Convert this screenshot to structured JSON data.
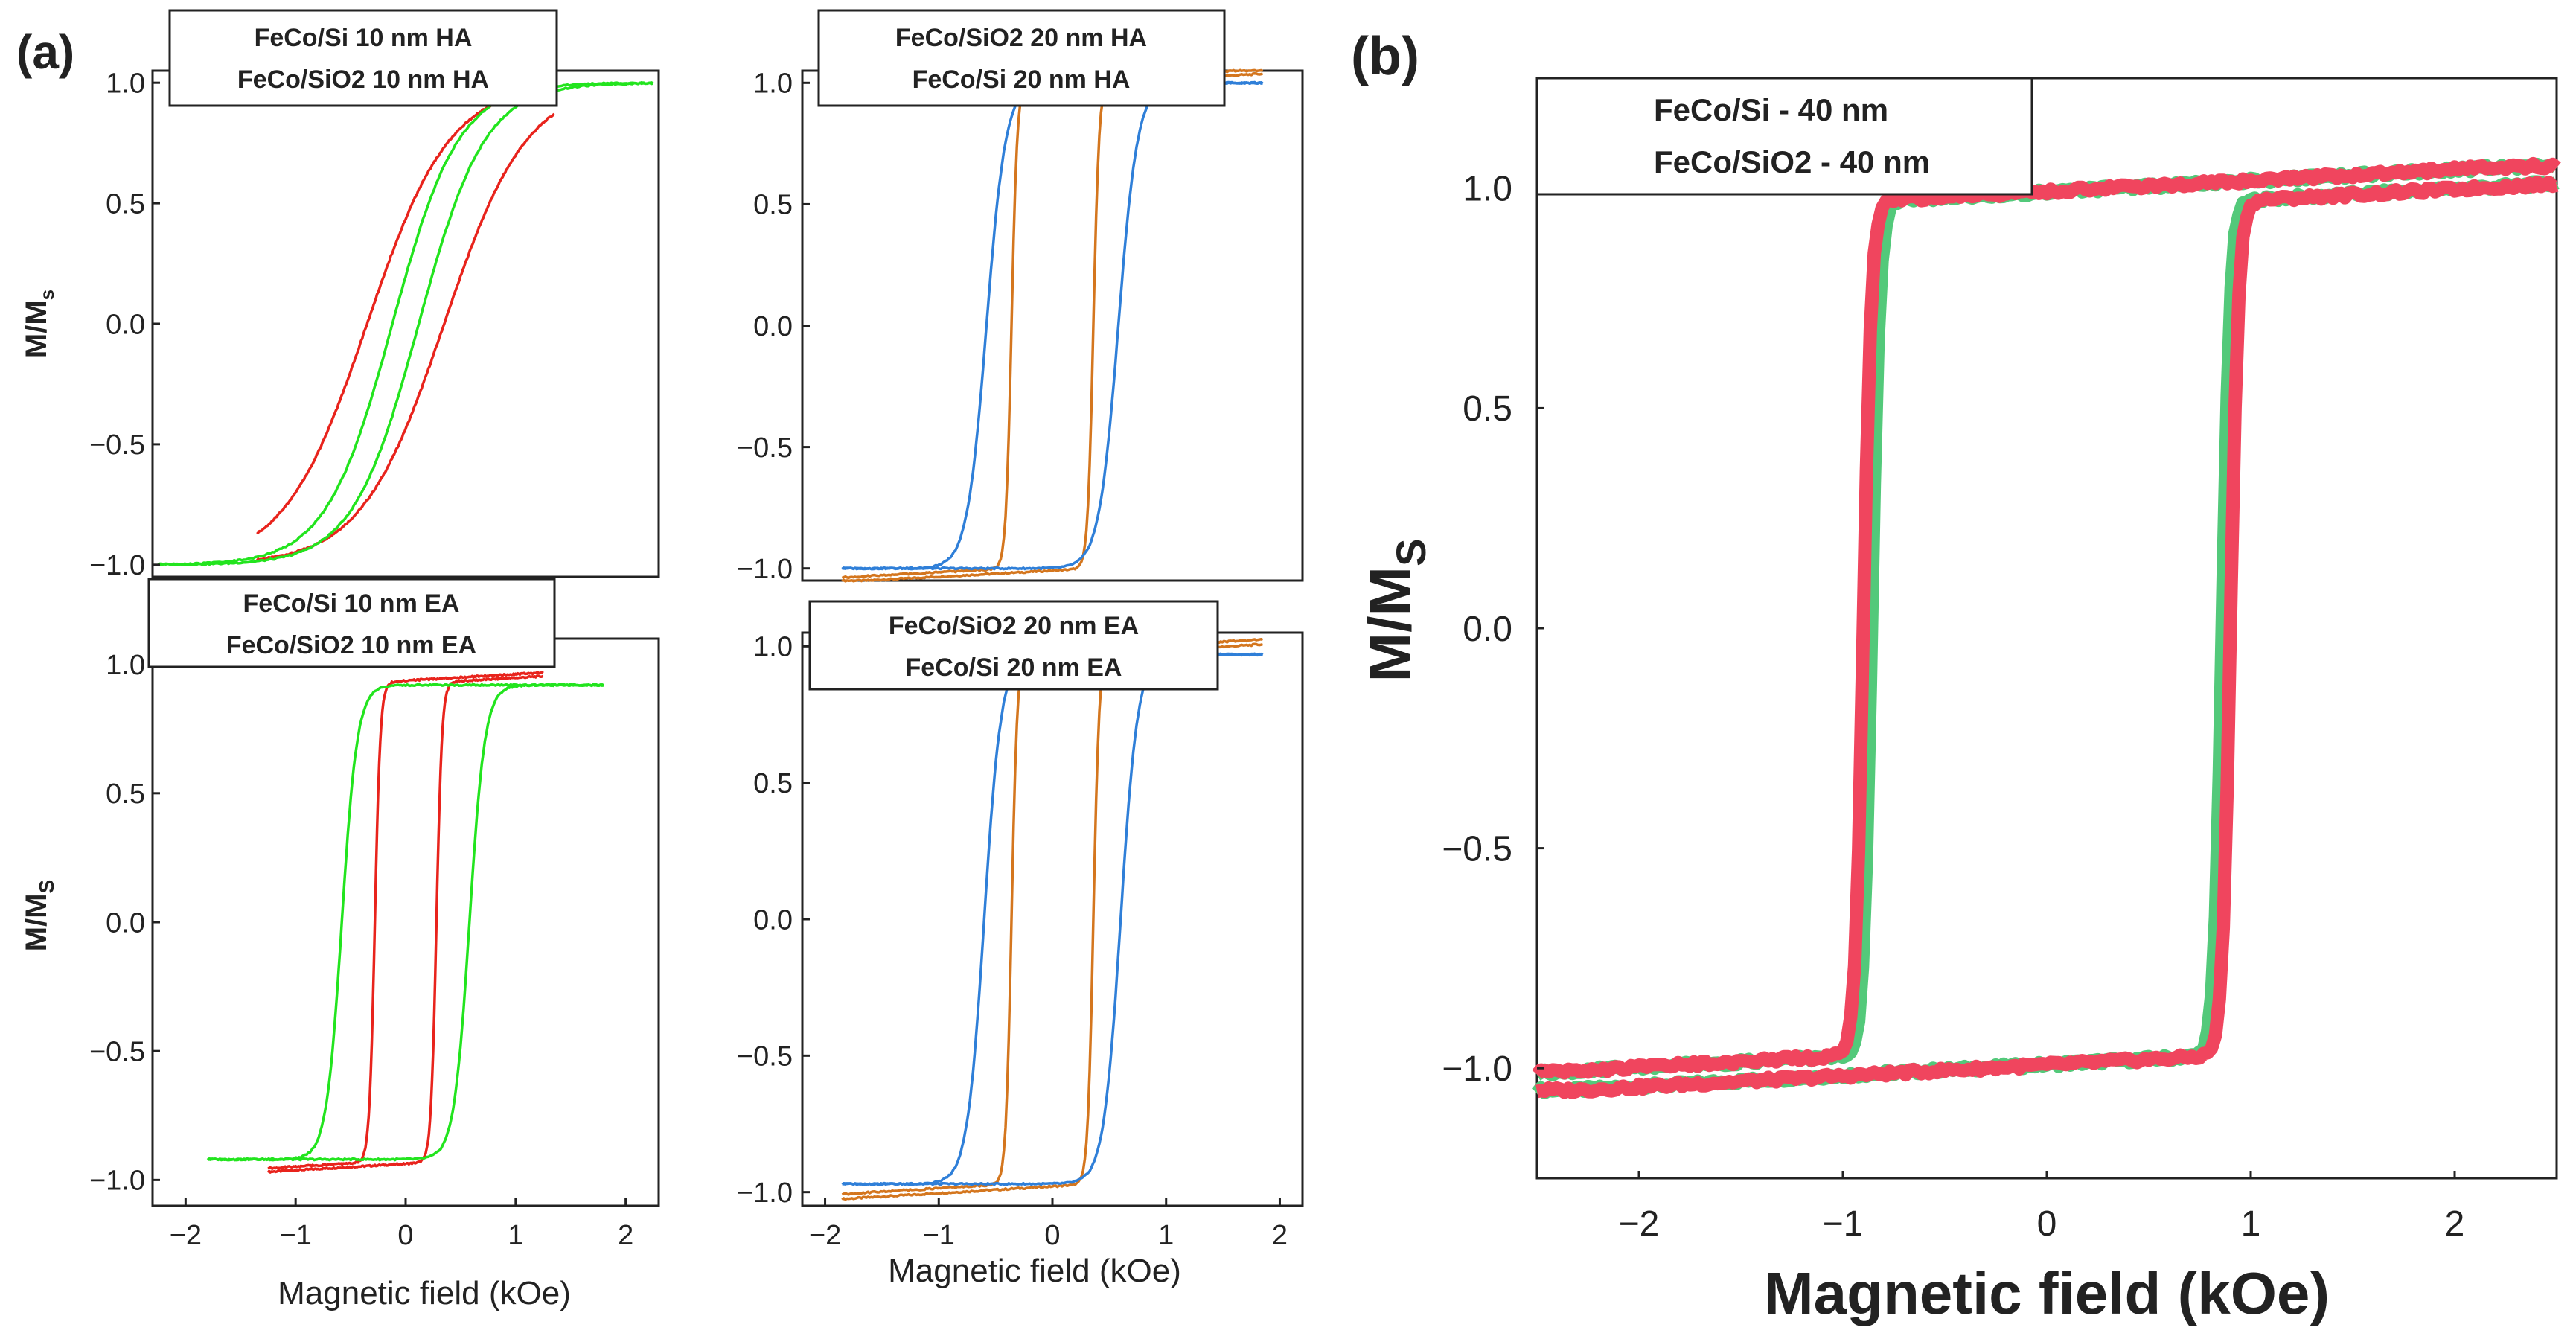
{
  "figure": {
    "panel_a_label": "(a)",
    "panel_b_label": "(b)"
  },
  "colors": {
    "red": "#e8231c",
    "green": "#22e41e",
    "orange": "#d4761e",
    "blue": "#2f7fd8",
    "pink": "#f0455e",
    "lightgreen": "#53c97a"
  },
  "chart_data": [
    {
      "id": "a_top_left",
      "type": "line",
      "xlabel": "",
      "ylabel": "M/M",
      "ylabel_sub": "s",
      "xlim": [
        -2.3,
        2.3
      ],
      "ylim": [
        -1.05,
        1.05
      ],
      "yticks": [
        {
          "v": 1.0,
          "t": "1.0"
        },
        {
          "v": 0.5,
          "t": "0.5"
        },
        {
          "v": 0.0,
          "t": "0.0"
        },
        {
          "v": -0.5,
          "t": "−0.5"
        },
        {
          "v": -1.0,
          "t": "−1.0"
        }
      ],
      "xticks": [],
      "legend": [
        "FeCo/Si 10 nm HA",
        "FeCo/SiO2 10 nm HA"
      ],
      "series": [
        {
          "name": "FeCo/Si 10 nm HA",
          "color": "red",
          "loop": "soft",
          "hc": 0.35,
          "w": 0.75,
          "ms": 1.0,
          "xmax": 1.35
        },
        {
          "name": "FeCo/SiO2 10 nm HA",
          "color": "green",
          "loop": "soft",
          "hc": 0.12,
          "w": 0.6,
          "ms": 1.0,
          "xmax": 2.25
        }
      ]
    },
    {
      "id": "a_top_right",
      "type": "line",
      "xlabel": "",
      "ylabel": "",
      "xlim": [
        -2.2,
        2.2
      ],
      "ylim": [
        -1.05,
        1.05
      ],
      "yticks": [
        {
          "v": 1.0,
          "t": "1.0"
        },
        {
          "v": 0.5,
          "t": "0.5"
        },
        {
          "v": 0.0,
          "t": "0.0"
        },
        {
          "v": -0.5,
          "t": "−0.5"
        },
        {
          "v": -1.0,
          "t": "−1.0"
        }
      ],
      "xticks": [],
      "legend": [
        "FeCo/SiO2 20 nm HA",
        "FeCo/Si 20 nm HA"
      ],
      "series": [
        {
          "name": "FeCo/SiO2 20 nm HA",
          "color": "orange",
          "loop": "square",
          "hc": 0.36,
          "w": 0.05,
          "ms": 1.0,
          "xmax": 1.85
        },
        {
          "name": "FeCo/Si 20 nm HA",
          "color": "blue",
          "loop": "soft",
          "hc": 0.58,
          "w": 0.17,
          "ms": 1.0,
          "xmax": 1.85
        }
      ]
    },
    {
      "id": "a_bottom_left",
      "type": "line",
      "xlabel": "Magnetic field (kOe)",
      "ylabel": "M/M",
      "ylabel_sub": "S",
      "xlim": [
        -2.3,
        2.3
      ],
      "ylim": [
        -1.1,
        1.1
      ],
      "yticks": [
        {
          "v": 1.0,
          "t": "1.0"
        },
        {
          "v": 0.5,
          "t": "0.5"
        },
        {
          "v": 0.0,
          "t": "0.0"
        },
        {
          "v": -0.5,
          "t": "−0.5"
        },
        {
          "v": -1.0,
          "t": "−1.0"
        }
      ],
      "xticks": [
        {
          "v": -2,
          "t": "−2"
        },
        {
          "v": -1,
          "t": "−1"
        },
        {
          "v": 0,
          "t": "0"
        },
        {
          "v": 1,
          "t": "1"
        },
        {
          "v": 2,
          "t": "2"
        }
      ],
      "legend": [
        "FeCo/Si 10 nm EA",
        "FeCo/SiO2 10 nm EA"
      ],
      "series": [
        {
          "name": "FeCo/Si 10 nm EA",
          "color": "red",
          "loop": "square",
          "hc": 0.28,
          "w": 0.05,
          "ms": 0.93,
          "xmax": 1.25
        },
        {
          "name": "FeCo/SiO2 10 nm EA",
          "color": "green",
          "loop": "soft",
          "hc": 0.58,
          "w": 0.14,
          "ms": 0.92,
          "xmax": 1.8
        }
      ]
    },
    {
      "id": "a_bottom_right",
      "type": "line",
      "xlabel": "Magnetic field (kOe)",
      "ylabel": "",
      "xlim": [
        -2.2,
        2.2
      ],
      "ylim": [
        -1.05,
        1.05
      ],
      "yticks": [
        {
          "v": 1.0,
          "t": "1.0"
        },
        {
          "v": 0.5,
          "t": "0.5"
        },
        {
          "v": 0.0,
          "t": "0.0"
        },
        {
          "v": -0.5,
          "t": "−0.5"
        },
        {
          "v": -1.0,
          "t": "−1.0"
        }
      ],
      "xticks": [
        {
          "v": -2,
          "t": "−2"
        },
        {
          "v": -1,
          "t": "−1"
        },
        {
          "v": 0,
          "t": "0"
        },
        {
          "v": 1,
          "t": "1"
        },
        {
          "v": 2,
          "t": "2"
        }
      ],
      "legend": [
        "FeCo/SiO2 20 nm EA",
        "FeCo/Si 20 nm EA"
      ],
      "series": [
        {
          "name": "FeCo/SiO2 20 nm EA",
          "color": "orange",
          "loop": "square",
          "hc": 0.36,
          "w": 0.05,
          "ms": 0.97,
          "xmax": 1.85
        },
        {
          "name": "FeCo/Si 20 nm EA",
          "color": "blue",
          "loop": "soft",
          "hc": 0.6,
          "w": 0.15,
          "ms": 0.97,
          "xmax": 1.85
        }
      ]
    },
    {
      "id": "b",
      "type": "line",
      "xlabel": "Magnetic field (kOe)",
      "ylabel": "M/M",
      "ylabel_sub": "S",
      "xlim": [
        -2.5,
        2.5
      ],
      "ylim": [
        -1.25,
        1.25
      ],
      "yticks": [
        {
          "v": 1.0,
          "t": "1.0"
        },
        {
          "v": 0.5,
          "t": "0.5"
        },
        {
          "v": 0.0,
          "t": "0.0"
        },
        {
          "v": -0.5,
          "t": "−0.5"
        },
        {
          "v": -1.0,
          "t": "−1.0"
        }
      ],
      "xticks": [
        {
          "v": -2,
          "t": "−2"
        },
        {
          "v": -1,
          "t": "−1"
        },
        {
          "v": 0,
          "t": "0"
        },
        {
          "v": 1,
          "t": "1"
        },
        {
          "v": 2,
          "t": "2"
        }
      ],
      "legend": [
        "FeCo/Si - 40 nm",
        "FeCo/SiO2 - 40 nm"
      ],
      "series": [
        {
          "name": "FeCo/SiO2 - 40 nm",
          "color": "lightgreen",
          "loop": "square",
          "hc": 0.86,
          "w": 0.04,
          "ms": 0.97,
          "xmax": 2.5
        },
        {
          "name": "FeCo/Si - 40 nm",
          "color": "pink",
          "loop": "square",
          "hc": 0.9,
          "w": 0.04,
          "ms": 0.97,
          "xmax": 2.5
        }
      ]
    }
  ]
}
